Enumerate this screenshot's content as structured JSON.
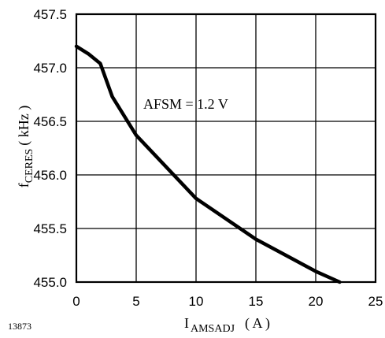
{
  "chart_data": {
    "type": "line",
    "title": "",
    "annotation": "AFSM = 1.2 V",
    "figure_id": "13873",
    "xlabel": {
      "main": "I",
      "sub": "AMSADJ",
      "unit": "(   A )"
    },
    "ylabel": {
      "main": "f",
      "sub": "CERES",
      "unit": "( kHz )"
    },
    "xlim": [
      0,
      25
    ],
    "ylim": [
      455.0,
      457.5
    ],
    "xticks": [
      0,
      5,
      10,
      15,
      20,
      25
    ],
    "xtick_labels": [
      "0",
      "5",
      "10",
      "15",
      "20",
      "25"
    ],
    "yticks": [
      455.0,
      455.5,
      456.0,
      456.5,
      457.0,
      457.5
    ],
    "ytick_labels": [
      "455.0",
      "455.5",
      "456.0",
      "456.5",
      "457.0",
      "457.5"
    ],
    "grid": true,
    "series": [
      {
        "x": [
          0,
          1,
          2,
          3,
          5,
          10,
          15,
          20,
          22
        ],
        "y": [
          457.2,
          457.13,
          457.04,
          456.73,
          456.37,
          455.78,
          455.4,
          455.1,
          455.0
        ]
      }
    ]
  }
}
